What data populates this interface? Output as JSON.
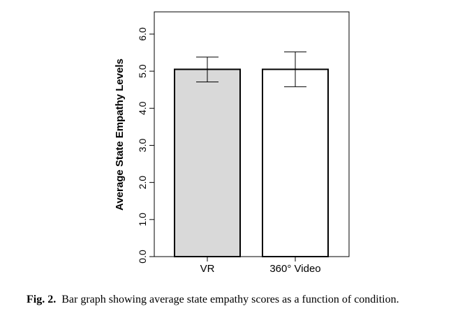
{
  "chart_data": {
    "type": "bar",
    "categories": [
      "VR",
      "360° Video"
    ],
    "values": [
      5.05,
      5.05
    ],
    "error_bars": [
      {
        "low": 4.71,
        "high": 5.38
      },
      {
        "low": 4.58,
        "high": 5.52
      }
    ],
    "bar_colors": [
      "#d9d9d9",
      "#ffffff"
    ],
    "ylabel": "Average State Empathy Levels",
    "xlabel": "",
    "ylim": [
      0,
      6.6
    ],
    "yticks": [
      0.0,
      1.0,
      2.0,
      3.0,
      4.0,
      5.0,
      6.0
    ],
    "ytick_labels": [
      "0.0",
      "1.0",
      "2.0",
      "3.0",
      "4.0",
      "5.0",
      "6.0"
    ],
    "grid": false,
    "legend": "none"
  },
  "caption": {
    "label": "Fig. 2.",
    "text": "Bar graph showing average state empathy scores as a function of condition."
  }
}
